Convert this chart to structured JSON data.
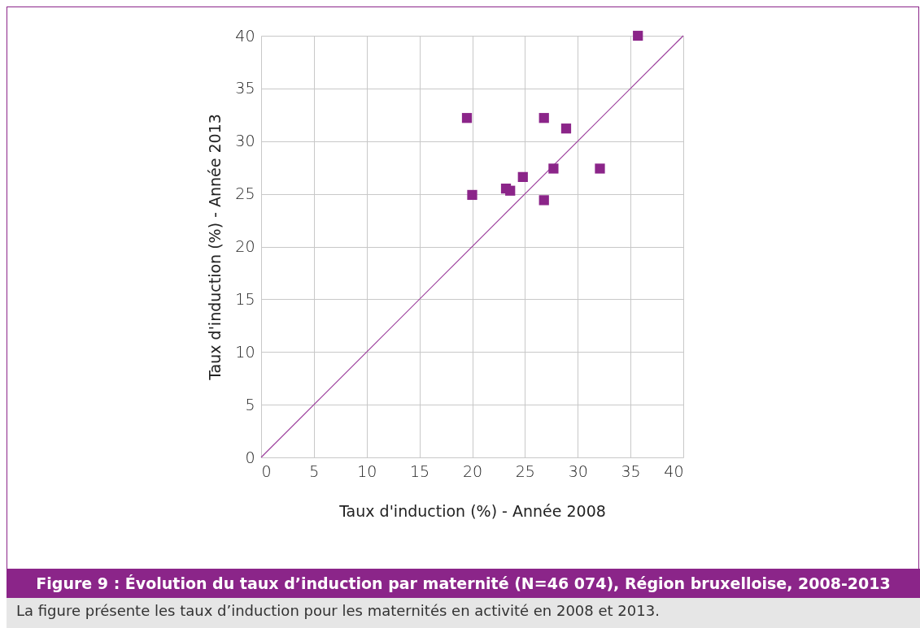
{
  "chart_data": {
    "type": "scatter",
    "title": "Figure 9 : Évolution du taux d’induction par maternité (N=46 074), Région bruxelloise, 2008-2013",
    "xlabel": "Taux d'induction (%) - Année 2008",
    "ylabel": "Taux d'induction (%) - Année 2013",
    "annotations": [
      "La figure présente les taux d’induction pour les maternités en activité en 2008 et 2013."
    ],
    "xlim": [
      0,
      40
    ],
    "ylim": [
      0,
      40
    ],
    "xticks": [
      0,
      5,
      10,
      15,
      20,
      25,
      30,
      35,
      40
    ],
    "yticks": [
      0,
      5,
      10,
      15,
      20,
      25,
      30,
      35,
      40
    ],
    "grid": true,
    "marker": "square",
    "series": [
      {
        "color": "#8b2589",
        "x": [
          19.5,
          20.0,
          23.2,
          23.6,
          24.8,
          26.8,
          26.8,
          27.7,
          28.9,
          32.1,
          35.7
        ],
        "values": [
          32.2,
          24.9,
          25.5,
          25.3,
          26.6,
          32.2,
          24.4,
          27.4,
          31.2,
          27.4,
          40.0
        ]
      },
      {
        "type": "line",
        "marker": "none",
        "color": "#9b3c9b",
        "x": [
          0,
          40
        ],
        "values": [
          0,
          40
        ]
      }
    ]
  }
}
